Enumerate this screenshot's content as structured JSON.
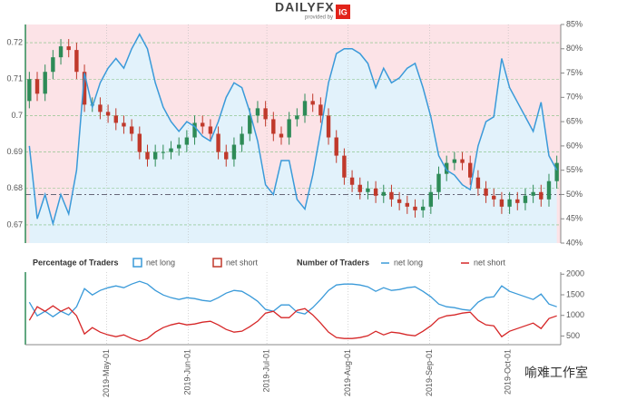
{
  "header": {
    "brand": "DAILYFX",
    "provided": "provided by",
    "partner": "IG"
  },
  "watermark": "喻难工作室",
  "chart_data": [
    {
      "type": "candlestick",
      "x": [
        1.5,
        4.5,
        7.5,
        10.5,
        13.5,
        16.5,
        19.5,
        22.5,
        25.5,
        28.5,
        31.5,
        34.5,
        37.5,
        40.5,
        43.5,
        46.5,
        49.5,
        52.5,
        55.5,
        58.5,
        61.5,
        64.5,
        67.5,
        70.5,
        73.5,
        76.5,
        79.5,
        82.5,
        85.5,
        88.5,
        91.5,
        94.5,
        97.5,
        100.5,
        103.5,
        106.5,
        109.5,
        112.5,
        115.5,
        118.5,
        121.5,
        124.5,
        127.5,
        130.5,
        133.5,
        136.5,
        139.5,
        142.5,
        145.5,
        148.5,
        151.5,
        154.5,
        157.5,
        160.5,
        163.5,
        166.5,
        169.5,
        172.5,
        175.5,
        178.5,
        181.5,
        184.5,
        187.5,
        190.5,
        193.5,
        196.5,
        199.5,
        202.5
      ],
      "open": [
        0.704,
        0.71,
        0.706,
        0.712,
        0.716,
        0.719,
        0.718,
        0.712,
        0.703,
        0.703,
        0.701,
        0.7,
        0.698,
        0.697,
        0.695,
        0.69,
        0.688,
        0.69,
        0.69,
        0.691,
        0.692,
        0.694,
        0.698,
        0.697,
        0.695,
        0.69,
        0.688,
        0.692,
        0.695,
        0.7,
        0.702,
        0.699,
        0.695,
        0.694,
        0.699,
        0.7,
        0.704,
        0.703,
        0.7,
        0.694,
        0.689,
        0.683,
        0.681,
        0.679,
        0.68,
        0.678,
        0.679,
        0.677,
        0.676,
        0.675,
        0.674,
        0.675,
        0.679,
        0.684,
        0.687,
        0.688,
        0.687,
        0.683,
        0.68,
        0.678,
        0.677,
        0.675,
        0.677,
        0.676,
        0.678,
        0.679,
        0.677,
        0.682
      ],
      "high": [
        0.712,
        0.712,
        0.714,
        0.718,
        0.721,
        0.721,
        0.72,
        0.714,
        0.705,
        0.705,
        0.703,
        0.702,
        0.7,
        0.699,
        0.697,
        0.692,
        0.692,
        0.692,
        0.693,
        0.694,
        0.696,
        0.7,
        0.7,
        0.699,
        0.697,
        0.692,
        0.694,
        0.697,
        0.702,
        0.704,
        0.704,
        0.701,
        0.697,
        0.701,
        0.702,
        0.706,
        0.706,
        0.705,
        0.702,
        0.696,
        0.691,
        0.685,
        0.683,
        0.682,
        0.682,
        0.681,
        0.681,
        0.679,
        0.678,
        0.677,
        0.677,
        0.681,
        0.686,
        0.689,
        0.69,
        0.69,
        0.689,
        0.685,
        0.682,
        0.68,
        0.679,
        0.679,
        0.679,
        0.68,
        0.681,
        0.681,
        0.684,
        0.689
      ],
      "low": [
        0.702,
        0.704,
        0.704,
        0.71,
        0.714,
        0.716,
        0.71,
        0.701,
        0.701,
        0.699,
        0.698,
        0.696,
        0.695,
        0.693,
        0.688,
        0.686,
        0.686,
        0.688,
        0.688,
        0.689,
        0.69,
        0.692,
        0.695,
        0.693,
        0.688,
        0.686,
        0.686,
        0.69,
        0.693,
        0.698,
        0.697,
        0.693,
        0.692,
        0.692,
        0.697,
        0.698,
        0.701,
        0.698,
        0.692,
        0.687,
        0.681,
        0.679,
        0.677,
        0.677,
        0.676,
        0.676,
        0.675,
        0.674,
        0.673,
        0.672,
        0.672,
        0.673,
        0.677,
        0.682,
        0.685,
        0.685,
        0.681,
        0.678,
        0.676,
        0.675,
        0.673,
        0.673,
        0.674,
        0.674,
        0.676,
        0.675,
        0.675,
        0.68
      ],
      "close": [
        0.71,
        0.706,
        0.712,
        0.716,
        0.719,
        0.718,
        0.712,
        0.703,
        0.703,
        0.701,
        0.7,
        0.698,
        0.697,
        0.695,
        0.69,
        0.688,
        0.69,
        0.69,
        0.691,
        0.692,
        0.694,
        0.698,
        0.697,
        0.695,
        0.69,
        0.688,
        0.692,
        0.695,
        0.7,
        0.702,
        0.699,
        0.695,
        0.694,
        0.699,
        0.7,
        0.704,
        0.703,
        0.7,
        0.694,
        0.689,
        0.683,
        0.681,
        0.679,
        0.68,
        0.678,
        0.679,
        0.677,
        0.676,
        0.675,
        0.674,
        0.675,
        0.679,
        0.684,
        0.687,
        0.688,
        0.687,
        0.683,
        0.68,
        0.678,
        0.677,
        0.675,
        0.677,
        0.676,
        0.678,
        0.679,
        0.677,
        0.682,
        0.687
      ],
      "up_color": "#2e8b57",
      "down_color": "#c0392b",
      "xlim": [
        0,
        204
      ],
      "ylim": [
        0.665,
        0.725
      ],
      "yticks": [
        0.67,
        0.68,
        0.69,
        0.7,
        0.71,
        0.72
      ],
      "y2lim": [
        40,
        85
      ],
      "y2ticks": [
        {
          "value": 40,
          "label": "40%"
        },
        {
          "value": 45,
          "label": "45%"
        },
        {
          "value": 50,
          "label": "50%"
        },
        {
          "value": 55,
          "label": "55%"
        },
        {
          "value": 60,
          "label": "60%"
        },
        {
          "value": 65,
          "label": "65%"
        },
        {
          "value": 70,
          "label": "70%"
        },
        {
          "value": 75,
          "label": "75%"
        },
        {
          "value": 80,
          "label": "80%"
        },
        {
          "value": 85,
          "label": "85%"
        }
      ],
      "y2_reference": 50,
      "long_fill": "#e2f2fb",
      "short_fill": "#fce3e7",
      "legend_title": "Percentage of Traders",
      "legend": [
        {
          "name": "net long",
          "color": "#3a9ad9"
        },
        {
          "name": "net short",
          "color": "#c0392b"
        }
      ],
      "series": [
        {
          "color": "#3a9ad9",
          "axis": "y2",
          "values": [
            60,
            45,
            50,
            44,
            50,
            46,
            55,
            75,
            68,
            73,
            76,
            78,
            76,
            80,
            83,
            80,
            73,
            68,
            65,
            63,
            65,
            64,
            62,
            61,
            65,
            70,
            73,
            72,
            67,
            61,
            52,
            50,
            57,
            57,
            49,
            47,
            54,
            63,
            73,
            79,
            80,
            80,
            79,
            77,
            72,
            76,
            73,
            74,
            76,
            77,
            72,
            66,
            58,
            55,
            54,
            52,
            51,
            60,
            65,
            66,
            78,
            72,
            69,
            66,
            63,
            69,
            58,
            55
          ]
        }
      ],
      "grid": true
    },
    {
      "type": "line",
      "x": [
        1.5,
        4.5,
        7.5,
        10.5,
        13.5,
        16.5,
        19.5,
        22.5,
        25.5,
        28.5,
        31.5,
        34.5,
        37.5,
        40.5,
        43.5,
        46.5,
        49.5,
        52.5,
        55.5,
        58.5,
        61.5,
        64.5,
        67.5,
        70.5,
        73.5,
        76.5,
        79.5,
        82.5,
        85.5,
        88.5,
        91.5,
        94.5,
        97.5,
        100.5,
        103.5,
        106.5,
        109.5,
        112.5,
        115.5,
        118.5,
        121.5,
        124.5,
        127.5,
        130.5,
        133.5,
        136.5,
        139.5,
        142.5,
        145.5,
        148.5,
        151.5,
        154.5,
        157.5,
        160.5,
        163.5,
        166.5,
        169.5,
        172.5,
        175.5,
        178.5,
        181.5,
        184.5,
        187.5,
        190.5,
        193.5,
        196.5,
        199.5,
        202.5
      ],
      "xlim": [
        0,
        204
      ],
      "xticks": [
        {
          "value": 31,
          "label": "2019-May-01"
        },
        {
          "value": 62,
          "label": "2019-Jun-01"
        },
        {
          "value": 92,
          "label": "2019-Jul-01"
        },
        {
          "value": 123,
          "label": "2019-Aug-01"
        },
        {
          "value": 154,
          "label": "2019-Sep-01"
        },
        {
          "value": 184,
          "label": "2019-Oct-01"
        }
      ],
      "ylim": [
        290,
        2050
      ],
      "yticks": [
        500,
        1000,
        1500,
        2000
      ],
      "legend_title": "Number of Traders",
      "series": [
        {
          "name": "net long",
          "color": "#3a9ad9",
          "values": [
            1320,
            990,
            1100,
            968,
            1100,
            1012,
            1210,
            1650,
            1496,
            1606,
            1672,
            1716,
            1672,
            1760,
            1826,
            1760,
            1606,
            1496,
            1430,
            1386,
            1430,
            1408,
            1364,
            1342,
            1430,
            1540,
            1606,
            1584,
            1474,
            1342,
            1144,
            1100,
            1254,
            1254,
            1078,
            1034,
            1188,
            1386,
            1606,
            1738,
            1760,
            1760,
            1738,
            1694,
            1584,
            1672,
            1606,
            1628,
            1672,
            1694,
            1584,
            1452,
            1276,
            1210,
            1188,
            1144,
            1122,
            1320,
            1430,
            1452,
            1716,
            1584,
            1518,
            1452,
            1386,
            1518,
            1276,
            1210
          ]
        },
        {
          "name": "net short",
          "color": "#d62728",
          "values": [
            880,
            1210,
            1100,
            1232,
            1100,
            1188,
            990,
            550,
            704,
            594,
            528,
            484,
            528,
            440,
            374,
            440,
            594,
            704,
            770,
            814,
            770,
            792,
            836,
            858,
            770,
            660,
            594,
            616,
            726,
            858,
            1056,
            1100,
            946,
            946,
            1122,
            1166,
            1012,
            814,
            594,
            462,
            440,
            440,
            462,
            506,
            616,
            528,
            594,
            572,
            528,
            506,
            616,
            748,
            924,
            990,
            1012,
            1056,
            1078,
            880,
            770,
            748,
            484,
            616,
            682,
            748,
            814,
            682,
            924,
            990
          ]
        }
      ]
    }
  ]
}
